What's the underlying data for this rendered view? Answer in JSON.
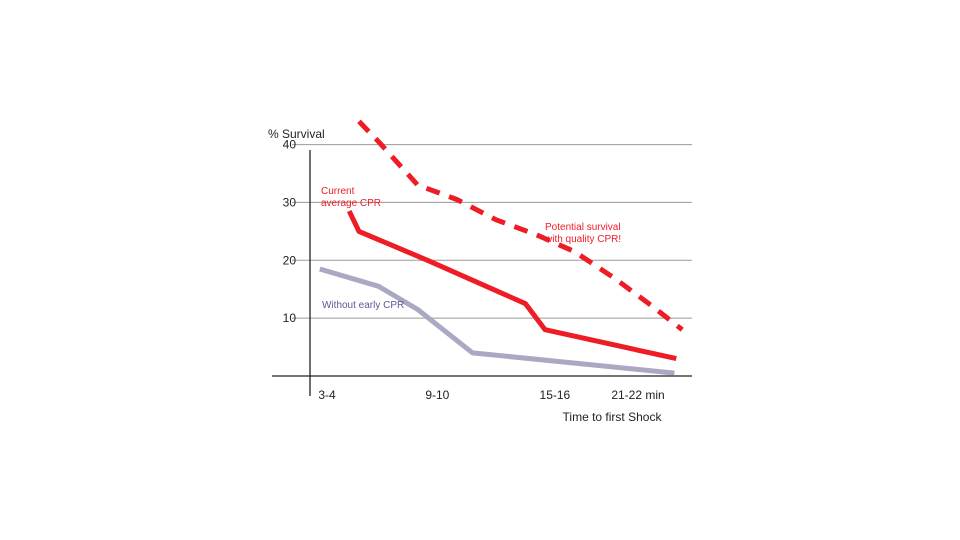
{
  "chart_data": {
    "type": "line",
    "ylabel": "% Survival",
    "xlabel": "Time to first Shock",
    "x_ticks": [
      "3-4",
      "9-10",
      "15-16",
      "21-22 min"
    ],
    "x_tick_values": [
      3.5,
      9.5,
      15.5,
      21.5
    ],
    "xlim": [
      3,
      22.5
    ],
    "y_ticks": [
      10,
      20,
      30,
      40
    ],
    "ylim": [
      0,
      42
    ],
    "grid": "horizontal",
    "series": [
      {
        "name": "Potential survival with quality CPR!",
        "label_lines": [
          "Potential survival",
          "with quality CPR!"
        ],
        "style": "dashed",
        "color": "#ee1c25",
        "x": [
          5.5,
          6.5,
          8.5,
          10.5,
          12.5,
          14.5,
          16.5,
          18.5,
          20.5,
          22
        ],
        "y": [
          44,
          40.5,
          33,
          30.5,
          27,
          24.5,
          21.5,
          17,
          12,
          8
        ]
      },
      {
        "name": "Current average CPR",
        "label_lines": [
          "Current",
          "average CPR"
        ],
        "style": "solid",
        "color": "#ee1c25",
        "x": [
          5,
          5.5,
          9,
          14,
          15,
          21.7
        ],
        "y": [
          28.5,
          25,
          20,
          12.5,
          8,
          3
        ]
      },
      {
        "name": "Without early CPR",
        "label_lines": [
          "Without early CPR"
        ],
        "style": "solid",
        "color": "#aaa9c3",
        "x": [
          3.5,
          6.5,
          8.5,
          11.3,
          21.6
        ],
        "y": [
          18.5,
          15.5,
          11.5,
          4,
          0.5
        ]
      }
    ]
  }
}
